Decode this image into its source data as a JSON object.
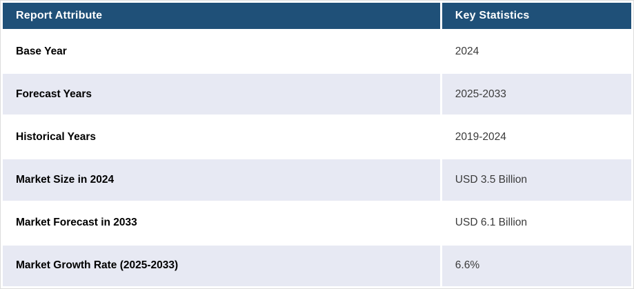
{
  "table": {
    "columns": [
      {
        "label": "Report Attribute"
      },
      {
        "label": "Key Statistics"
      }
    ],
    "rows": [
      {
        "attribute": "Base Year",
        "value": "2024"
      },
      {
        "attribute": "Forecast Years",
        "value": "2025-2033"
      },
      {
        "attribute": "Historical Years",
        "value": "2019-2024"
      },
      {
        "attribute": "Market Size in 2024",
        "value": "USD 3.5 Billion"
      },
      {
        "attribute": "Market Forecast in 2033",
        "value": "USD 6.1 Billion"
      },
      {
        "attribute": "Market Growth Rate (2025-2033)",
        "value": "6.6%"
      }
    ],
    "colors": {
      "header_bg": "#1f5078",
      "header_text": "#ffffff",
      "row_bg": "#ffffff",
      "row_alt_bg": "#e7e9f3",
      "attribute_text": "#000000",
      "value_text": "#3a3a3a",
      "outer_border": "#dcdcdc"
    }
  }
}
